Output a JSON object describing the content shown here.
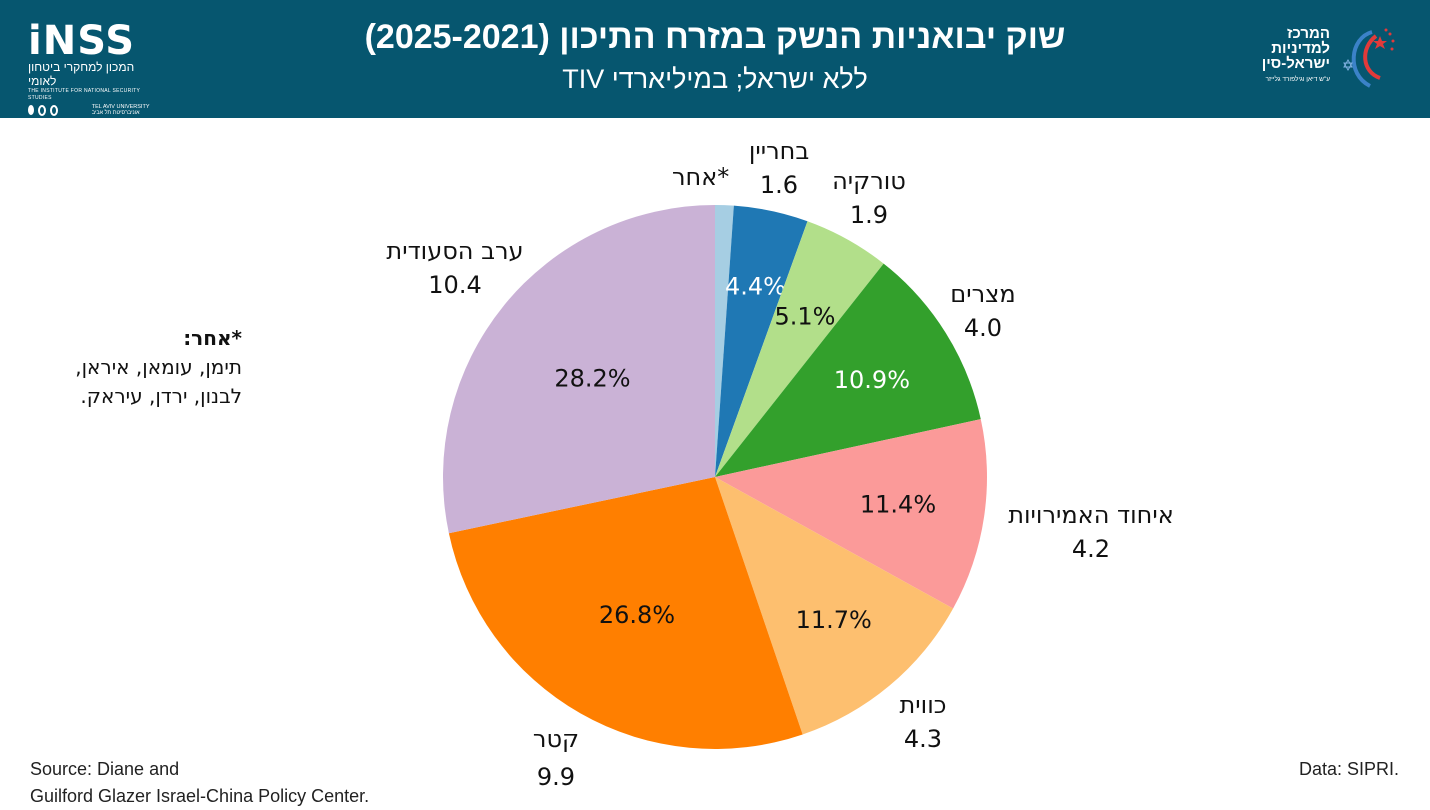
{
  "header": {
    "title": "שוק יבואניות הנשק במזרח התיכון (2025-2021)",
    "subtitle": "ללא ישראל; במיליארדי TIV",
    "background": "#06566f"
  },
  "logo_left": {
    "word": "iNSS",
    "hebrew": "המכון למחקרי ביטחון לאומי",
    "english": "THE INSTITUTE FOR NATIONAL SECURITY STUDIES",
    "university": "TEL AVIV UNIVERSITY אוניברסיטת תל אביב"
  },
  "logo_right": {
    "line1": "המרכז",
    "line2": "למדיניות",
    "line3": "ישראל-סין",
    "sub": "ע\"ש דיאן וגילפורד גלייזר"
  },
  "chart_data": {
    "type": "pie",
    "title": "שוק יבואניות הנשק במזרח התיכון (2025-2021)",
    "subtitle": "ללא ישראל; במיליארדי TIV",
    "units": "TIV (billions)",
    "start": "12 o'clock",
    "direction": "clockwise",
    "slices": [
      {
        "name": "*אחר",
        "value": null,
        "percent": 1.1,
        "percent_label": "",
        "color": "#a6cee3",
        "label_color": "#111111"
      },
      {
        "name": "בחריין",
        "value": "1.6",
        "percent": 4.4,
        "percent_label": "4.4%",
        "color": "#1f78b4",
        "label_color": "#ffffff"
      },
      {
        "name": "טורקיה",
        "value": "1.9",
        "percent": 5.1,
        "percent_label": "5.1%",
        "color": "#b2df8a",
        "label_color": "#111111"
      },
      {
        "name": "מצרים",
        "value": "4.0",
        "percent": 10.9,
        "percent_label": "10.9%",
        "color": "#33a02c",
        "label_color": "#ffffff"
      },
      {
        "name": "איחוד האמירויות",
        "value": "4.2",
        "percent": 11.4,
        "percent_label": "11.4%",
        "color": "#fb9a99",
        "label_color": "#111111"
      },
      {
        "name": "כווית",
        "value": "4.3",
        "percent": 11.7,
        "percent_label": "11.7%",
        "color": "#fdbf6f",
        "label_color": "#111111"
      },
      {
        "name": "קטר",
        "value": "9.9",
        "percent": 26.8,
        "percent_label": "26.8%",
        "color": "#ff7f00",
        "label_color": "#111111"
      },
      {
        "name": "ערב הסעודית",
        "value": "10.4",
        "percent": 28.2,
        "percent_label": "28.2%",
        "color": "#cab2d6",
        "label_color": "#111111"
      }
    ]
  },
  "note": {
    "heading": "*אחר:",
    "line1": "תימן, עומאן, איראן,",
    "line2": "לבנון, ירדן, עיראק."
  },
  "footer": {
    "source_line1": "Source: Diane and",
    "source_line2": "Guilford Glazer Israel-China Policy Center.",
    "data": "Data: SIPRI."
  }
}
